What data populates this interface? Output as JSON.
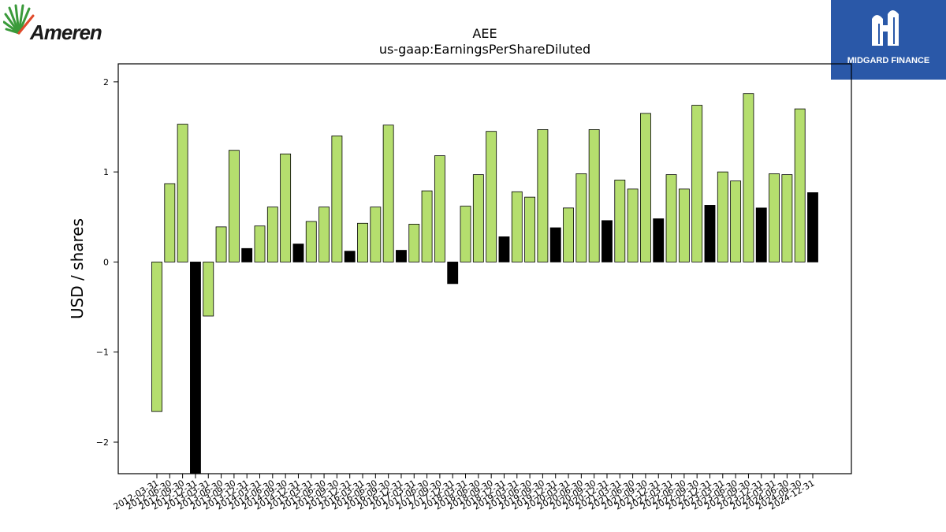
{
  "brand": {
    "name": "Ameren",
    "logo_icon": "ameren-sunburst-icon",
    "logo_color": "#3a9a3a"
  },
  "sponsor": {
    "name": "MIDGARD FINANCE",
    "logo_icon": "midgard-m-icon",
    "background": "#2a58a8"
  },
  "chart_data": {
    "type": "bar",
    "title": "AEE",
    "subtitle": "us-gaap:EarningsPerShareDiluted",
    "xlabel": "",
    "ylabel": "USD / shares",
    "ylim": [
      -2.35,
      2.2
    ],
    "yticks": [
      -2,
      -1,
      0,
      1,
      2
    ],
    "grid": false,
    "colors": {
      "quarter": "#b5de6e",
      "annual": "#000000"
    },
    "categories": [
      "2012-03-31",
      "2012-06-30",
      "2012-09-30",
      "2012-12-31",
      "2013-03-31",
      "2013-06-30",
      "2013-09-30",
      "2013-12-31",
      "2014-03-31",
      "2014-06-30",
      "2014-09-30",
      "2014-12-31",
      "2015-03-31",
      "2015-06-30",
      "2015-09-30",
      "2015-12-31",
      "2016-03-31",
      "2016-06-30",
      "2016-09-30",
      "2016-12-31",
      "2017-03-31",
      "2017-06-30",
      "2017-09-30",
      "2017-12-31",
      "2018-03-31",
      "2018-06-30",
      "2018-09-30",
      "2018-12-31",
      "2019-03-31",
      "2019-06-30",
      "2019-09-30",
      "2019-12-31",
      "2020-03-31",
      "2020-06-30",
      "2020-09-30",
      "2020-12-31",
      "2021-03-31",
      "2021-06-30",
      "2021-09-30",
      "2021-12-31",
      "2022-03-31",
      "2022-06-30",
      "2022-09-30",
      "2022-12-31",
      "2023-03-31",
      "2023-06-30",
      "2023-09-30",
      "2023-12-31",
      "2024-03-31",
      "2024-06-30",
      "2024-09-30",
      "2024-12-31"
    ],
    "values": [
      -1.66,
      0.87,
      1.53,
      -2.35,
      -0.6,
      0.39,
      1.24,
      0.15,
      0.4,
      0.61,
      1.2,
      0.2,
      0.45,
      0.61,
      1.4,
      0.12,
      0.43,
      0.61,
      1.52,
      0.13,
      0.42,
      0.79,
      1.18,
      -0.24,
      0.62,
      0.97,
      1.45,
      0.28,
      0.78,
      0.72,
      1.47,
      0.38,
      0.6,
      0.98,
      1.47,
      0.46,
      0.91,
      0.81,
      1.65,
      0.48,
      0.97,
      0.81,
      1.74,
      0.63,
      1.0,
      0.9,
      1.87,
      0.6,
      0.98,
      0.97,
      1.7,
      0.77
    ],
    "annual_flags": [
      0,
      0,
      0,
      1,
      0,
      0,
      0,
      1,
      0,
      0,
      0,
      1,
      0,
      0,
      0,
      1,
      0,
      0,
      0,
      1,
      0,
      0,
      0,
      1,
      0,
      0,
      0,
      1,
      0,
      0,
      0,
      1,
      0,
      0,
      0,
      1,
      0,
      0,
      0,
      1,
      0,
      0,
      0,
      1,
      0,
      0,
      0,
      1,
      0,
      0,
      0,
      1
    ]
  }
}
